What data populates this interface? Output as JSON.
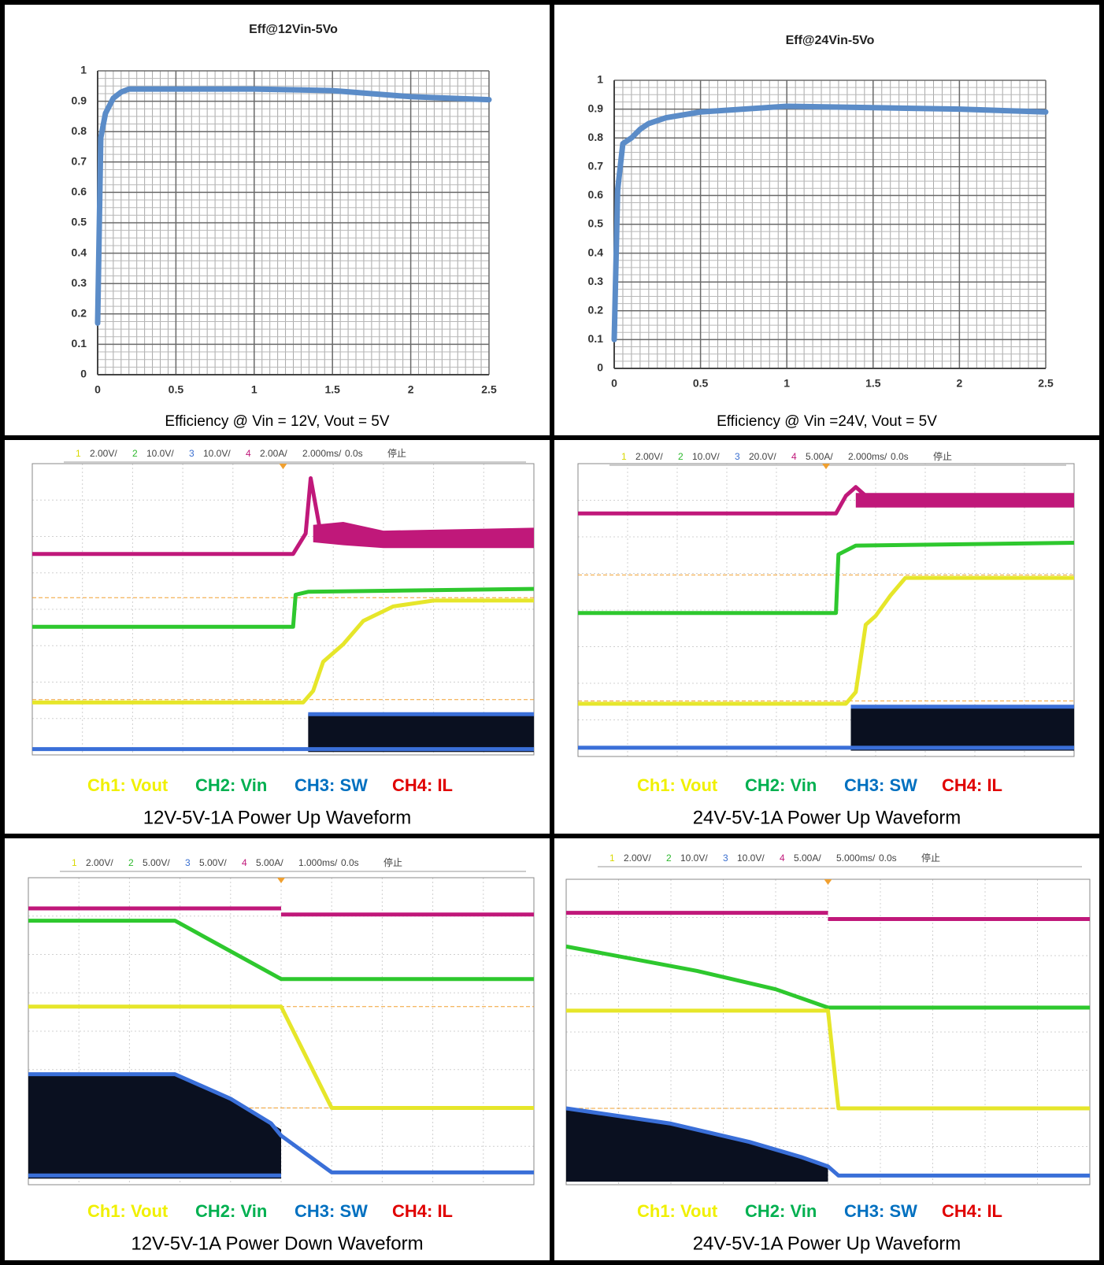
{
  "chart_data": [
    {
      "type": "line",
      "title": "Eff@12Vin-5Vo",
      "caption": "Efficiency @ Vin = 12V, Vout = 5V",
      "x": [
        0,
        0.02,
        0.05,
        0.1,
        0.15,
        0.2,
        0.3,
        0.5,
        1,
        1.5,
        2,
        2.5
      ],
      "values": [
        0.17,
        0.78,
        0.86,
        0.91,
        0.93,
        0.94,
        0.94,
        0.94,
        0.94,
        0.935,
        0.915,
        0.905
      ],
      "color": "#5b8cc8",
      "xlim": [
        0,
        2.5
      ],
      "ylim": [
        0,
        1
      ],
      "xticks": [
        0,
        0.5,
        1,
        1.5,
        2,
        2.5
      ],
      "yticks": [
        0,
        0.1,
        0.2,
        0.3,
        0.4,
        0.5,
        0.6,
        0.7,
        0.8,
        0.9,
        1
      ],
      "grid": true
    },
    {
      "type": "line",
      "title": "Eff@24Vin-5Vo",
      "caption": "Efficiency @ Vin =24V, Vout = 5V",
      "x": [
        0,
        0.02,
        0.05,
        0.1,
        0.15,
        0.2,
        0.3,
        0.5,
        1,
        1.5,
        2,
        2.5
      ],
      "values": [
        0.1,
        0.62,
        0.78,
        0.8,
        0.83,
        0.85,
        0.87,
        0.89,
        0.91,
        0.905,
        0.9,
        0.89
      ],
      "color": "#5b8cc8",
      "xlim": [
        0,
        2.5
      ],
      "ylim": [
        0,
        1
      ],
      "xticks": [
        0,
        0.5,
        1,
        1.5,
        2,
        2.5
      ],
      "yticks": [
        0,
        0.1,
        0.2,
        0.3,
        0.4,
        0.5,
        0.6,
        0.7,
        0.8,
        0.9,
        1
      ],
      "grid": true
    }
  ],
  "scope_panels": [
    {
      "header": [
        {
          "text": "1",
          "color": "#d8d800"
        },
        {
          "text": "2.00V/",
          "color": "#444"
        },
        {
          "text": "2",
          "color": "#2db82d"
        },
        {
          "text": "10.0V/",
          "color": "#444"
        },
        {
          "text": "3",
          "color": "#3a6fd0"
        },
        {
          "text": "10.0V/",
          "color": "#444"
        },
        {
          "text": "4",
          "color": "#c0187a"
        },
        {
          "text": "2.00A/",
          "color": "#444"
        },
        {
          "text": "2.000ms/",
          "color": "#444"
        },
        {
          "text": "0.0s",
          "color": "#444"
        },
        {
          "text": "停止",
          "color": "#444"
        }
      ],
      "legend": [
        {
          "label": "Ch1: Vout",
          "color": "#f0f000"
        },
        {
          "label": "CH2: Vin",
          "color": "#00b050"
        },
        {
          "label": "CH3: SW",
          "color": "#0070c0"
        },
        {
          "label": "CH4: IL",
          "color": "#e00000"
        }
      ],
      "caption": "12V-5V-1A Power Up Waveform"
    },
    {
      "header": [
        {
          "text": "1",
          "color": "#d8d800"
        },
        {
          "text": "2.00V/",
          "color": "#444"
        },
        {
          "text": "2",
          "color": "#2db82d"
        },
        {
          "text": "10.0V/",
          "color": "#444"
        },
        {
          "text": "3",
          "color": "#3a6fd0"
        },
        {
          "text": "20.0V/",
          "color": "#444"
        },
        {
          "text": "4",
          "color": "#c0187a"
        },
        {
          "text": "5.00A/",
          "color": "#444"
        },
        {
          "text": "2.000ms/",
          "color": "#444"
        },
        {
          "text": "0.0s",
          "color": "#444"
        },
        {
          "text": "停止",
          "color": "#444"
        }
      ],
      "legend": [
        {
          "label": "Ch1: Vout",
          "color": "#f0f000"
        },
        {
          "label": "CH2: Vin",
          "color": "#00b050"
        },
        {
          "label": "CH3: SW",
          "color": "#0070c0"
        },
        {
          "label": "CH4: IL",
          "color": "#e00000"
        }
      ],
      "caption": "24V-5V-1A Power Up Waveform"
    },
    {
      "header": [
        {
          "text": "1",
          "color": "#d8d800"
        },
        {
          "text": "2.00V/",
          "color": "#444"
        },
        {
          "text": "2",
          "color": "#2db82d"
        },
        {
          "text": "5.00V/",
          "color": "#444"
        },
        {
          "text": "3",
          "color": "#3a6fd0"
        },
        {
          "text": "5.00V/",
          "color": "#444"
        },
        {
          "text": "4",
          "color": "#c0187a"
        },
        {
          "text": "5.00A/",
          "color": "#444"
        },
        {
          "text": "1.000ms/",
          "color": "#444"
        },
        {
          "text": "0.0s",
          "color": "#444"
        },
        {
          "text": "停止",
          "color": "#444"
        }
      ],
      "legend": [
        {
          "label": "Ch1: Vout",
          "color": "#f0f000"
        },
        {
          "label": "CH2: Vin",
          "color": "#00b050"
        },
        {
          "label": "CH3: SW",
          "color": "#0070c0"
        },
        {
          "label": "CH4: IL",
          "color": "#e00000"
        }
      ],
      "caption": "12V-5V-1A Power Down Waveform"
    },
    {
      "header": [
        {
          "text": "1",
          "color": "#d8d800"
        },
        {
          "text": "2.00V/",
          "color": "#444"
        },
        {
          "text": "2",
          "color": "#2db82d"
        },
        {
          "text": "10.0V/",
          "color": "#444"
        },
        {
          "text": "3",
          "color": "#3a6fd0"
        },
        {
          "text": "10.0V/",
          "color": "#444"
        },
        {
          "text": "4",
          "color": "#c0187a"
        },
        {
          "text": "5.00A/",
          "color": "#444"
        },
        {
          "text": "5.000ms/",
          "color": "#444"
        },
        {
          "text": "0.0s",
          "color": "#444"
        },
        {
          "text": "停止",
          "color": "#444"
        }
      ],
      "legend": [
        {
          "label": "Ch1: Vout",
          "color": "#f0f000"
        },
        {
          "label": "CH2: Vin",
          "color": "#00b050"
        },
        {
          "label": "CH3: SW",
          "color": "#0070c0"
        },
        {
          "label": "CH4: IL",
          "color": "#e00000"
        }
      ],
      "caption": "24V-5V-1A Power Up Waveform"
    }
  ]
}
